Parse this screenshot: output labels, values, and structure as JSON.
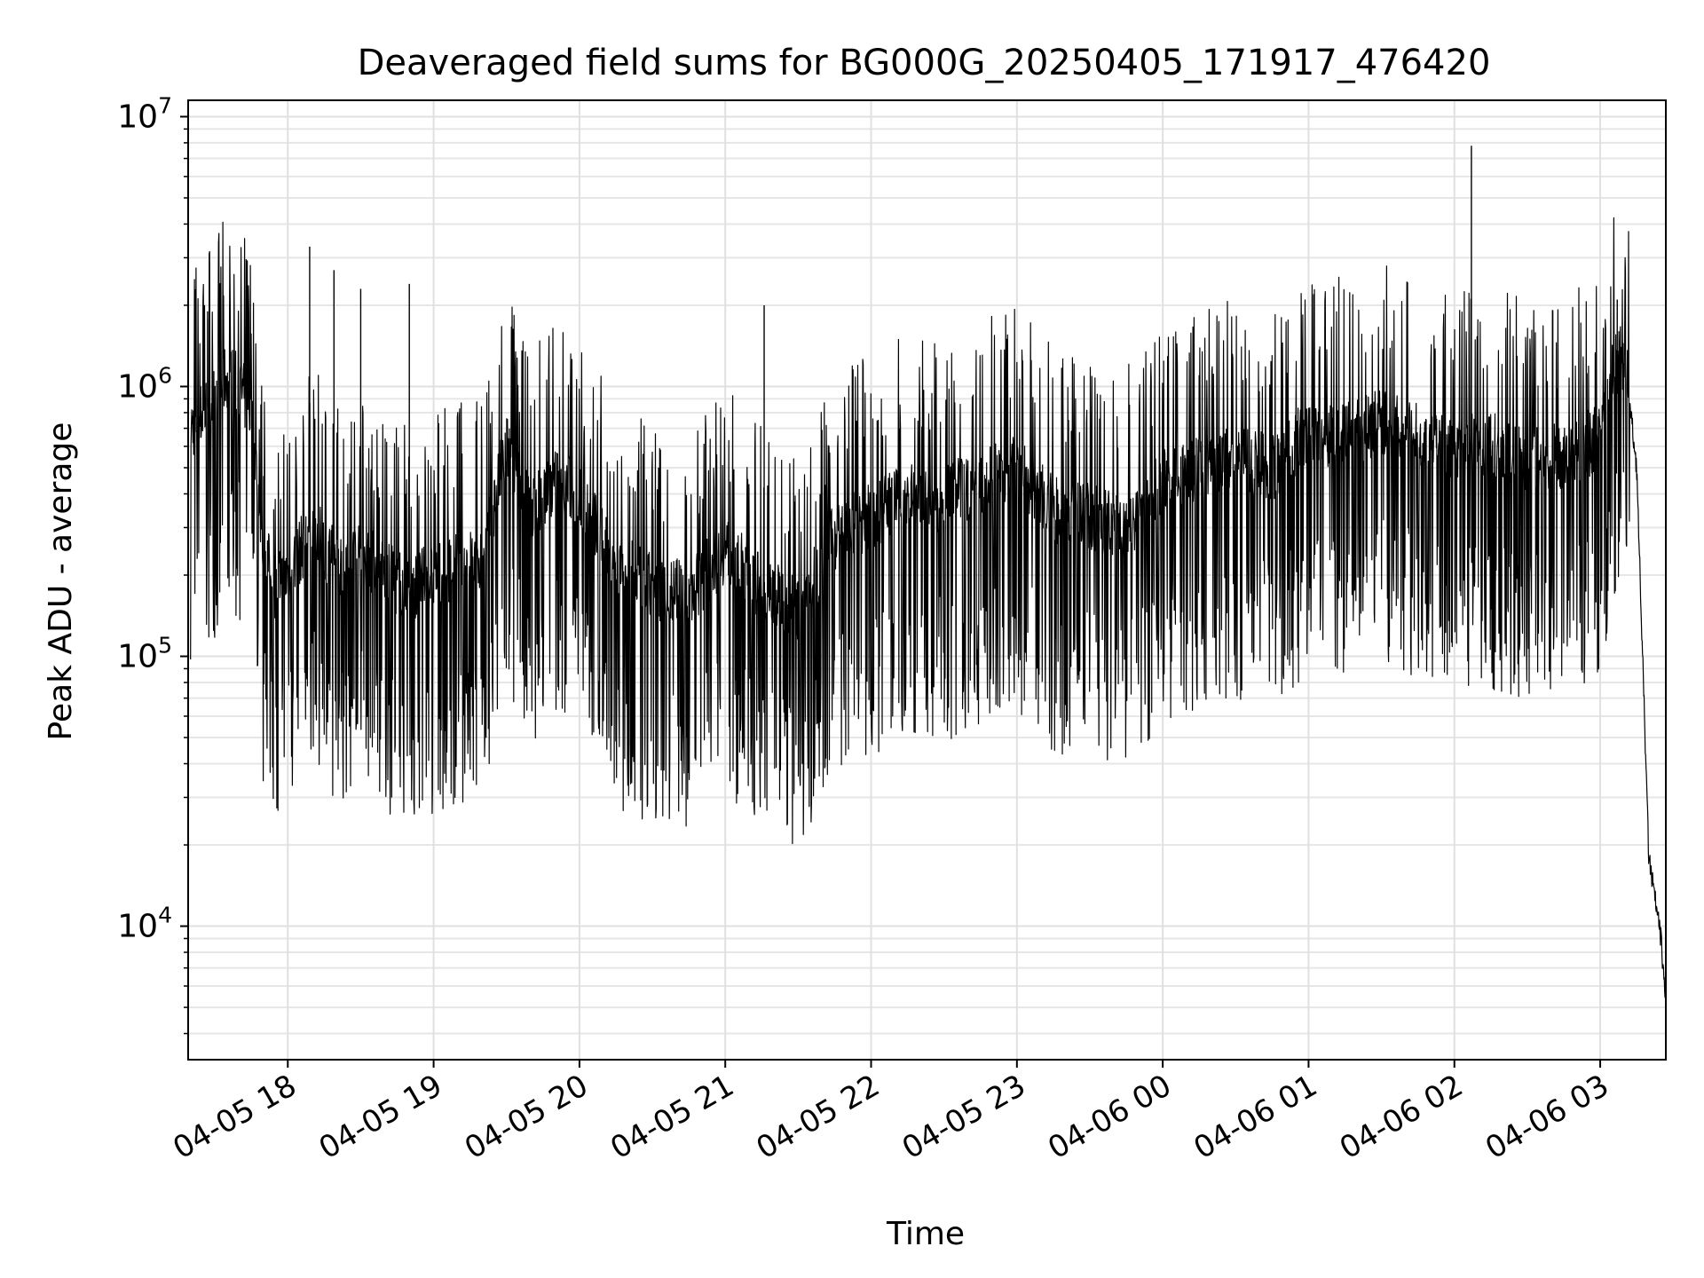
{
  "chart_data": {
    "type": "line",
    "title": "Deaveraged field sums for BG000G_20250405_171917_476420",
    "xlabel": "Time",
    "ylabel": "Peak ADU - average",
    "yscale": "log",
    "ylim": [
      3200,
      11500000
    ],
    "xlim": [
      "2025-04-05 17:19",
      "2025-04-06 03:27"
    ],
    "grid": true,
    "line_color": "#000000",
    "x_tick_labels": [
      "04-05 18",
      "04-05 19",
      "04-05 20",
      "04-05 21",
      "04-05 22",
      "04-05 23",
      "04-06 00",
      "04-06 01",
      "04-06 02",
      "04-06 03"
    ],
    "x_ticks": [
      "2025-04-05 18:00",
      "2025-04-05 19:00",
      "2025-04-05 20:00",
      "2025-04-05 21:00",
      "2025-04-05 22:00",
      "2025-04-05 23:00",
      "2025-04-06 00:00",
      "2025-04-06 01:00",
      "2025-04-06 02:00",
      "2025-04-06 03:00"
    ],
    "y_ticks": [
      {
        "value": 10000,
        "base": "10",
        "exp": "4"
      },
      {
        "value": 100000,
        "base": "10",
        "exp": "5"
      },
      {
        "value": 1000000,
        "base": "10",
        "exp": "6"
      },
      {
        "value": 10000000,
        "base": "10",
        "exp": "7"
      }
    ],
    "series": [
      {
        "x": [
          "2025-04-05 17:20",
          "2025-04-05 17:25",
          "2025-04-05 17:30",
          "2025-04-05 17:35",
          "2025-04-05 17:40",
          "2025-04-05 17:45",
          "2025-04-05 17:50",
          "2025-04-05 17:55",
          "2025-04-05 18:00",
          "2025-04-05 18:10",
          "2025-04-05 18:20",
          "2025-04-05 18:30",
          "2025-04-05 18:40",
          "2025-04-05 18:50",
          "2025-04-05 19:00",
          "2025-04-05 19:10",
          "2025-04-05 19:20",
          "2025-04-05 19:30",
          "2025-04-05 19:40",
          "2025-04-05 19:50",
          "2025-04-05 20:00",
          "2025-04-05 20:15",
          "2025-04-05 20:30",
          "2025-04-05 20:45",
          "2025-04-05 21:00",
          "2025-04-05 21:15",
          "2025-04-05 21:30",
          "2025-04-05 21:45",
          "2025-04-05 22:00",
          "2025-04-05 22:15",
          "2025-04-05 22:30",
          "2025-04-05 22:45",
          "2025-04-05 23:00",
          "2025-04-05 23:15",
          "2025-04-05 23:30",
          "2025-04-05 23:45",
          "2025-04-06 00:00",
          "2025-04-06 00:15",
          "2025-04-06 00:30",
          "2025-04-06 00:45",
          "2025-04-06 01:00",
          "2025-04-06 01:15",
          "2025-04-06 01:30",
          "2025-04-06 01:45",
          "2025-04-06 02:00",
          "2025-04-06 02:15",
          "2025-04-06 02:30",
          "2025-04-06 02:45",
          "2025-04-06 03:00",
          "2025-04-06 03:05",
          "2025-04-06 03:10",
          "2025-04-06 03:15",
          "2025-04-06 03:20",
          "2025-04-06 03:25",
          "2025-04-06 03:27"
        ],
        "y": [
          700000,
          800000,
          900000,
          1100000,
          1000000,
          800000,
          250000,
          180000,
          200000,
          300000,
          220000,
          250000,
          200000,
          180000,
          200000,
          220000,
          230000,
          600000,
          350000,
          450000,
          400000,
          220000,
          180000,
          170000,
          250000,
          180000,
          150000,
          280000,
          330000,
          400000,
          380000,
          450000,
          500000,
          350000,
          330000,
          300000,
          450000,
          500000,
          550000,
          500000,
          700000,
          650000,
          750000,
          650000,
          600000,
          600000,
          550000,
          550000,
          650000,
          1200000,
          1300000,
          500000,
          18000,
          9000,
          5000
        ]
      }
    ]
  }
}
